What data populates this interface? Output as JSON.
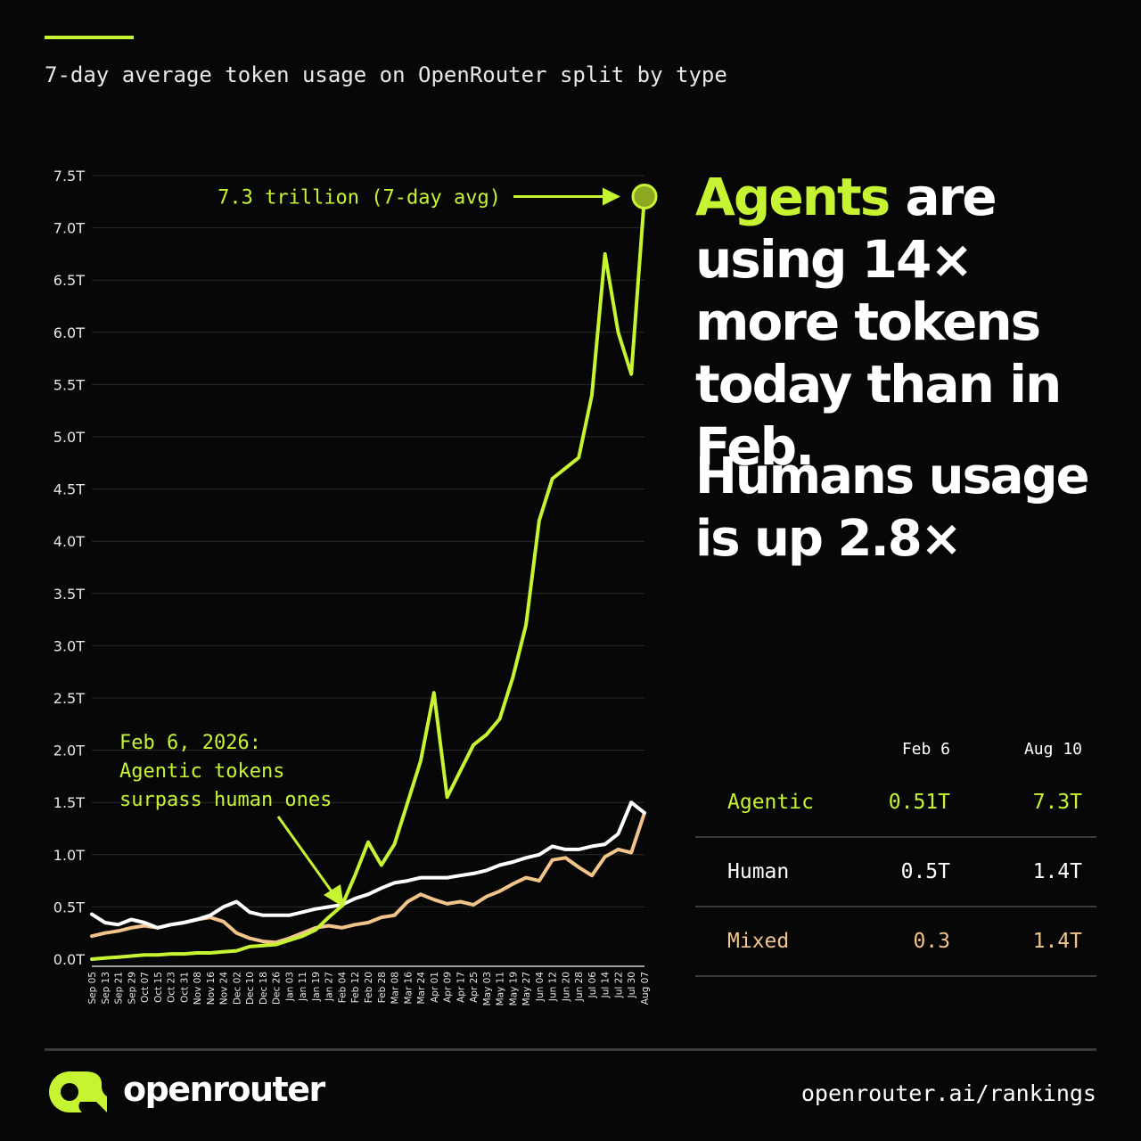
{
  "subtitle": "7-day average token usage on OpenRouter split by type",
  "headline": {
    "part1_accent": "Agents",
    "part1_rest": " are using 14× more tokens today than in Feb.",
    "part2": "Humans usage is up 2.8×"
  },
  "chart_data": {
    "type": "line",
    "title": "",
    "xlabel": "",
    "ylabel": "",
    "ylim": [
      0,
      7.5
    ],
    "y_ticks": [
      "0.0T",
      "0.5T",
      "1.0T",
      "1.5T",
      "2.0T",
      "2.5T",
      "3.0T",
      "3.5T",
      "4.0T",
      "4.5T",
      "5.0T",
      "5.5T",
      "6.0T",
      "6.5T",
      "7.0T",
      "7.5T"
    ],
    "y_tick_values": [
      0,
      0.5,
      1,
      1.5,
      2,
      2.5,
      3,
      3.5,
      4,
      4.5,
      5,
      5.5,
      6,
      6.5,
      7,
      7.5
    ],
    "x_labels": [
      "Sep 05",
      "Sep 13",
      "Sep 21",
      "Sep 29",
      "Oct 07",
      "Oct 15",
      "Oct 23",
      "Oct 31",
      "Nov 08",
      "Nov 16",
      "Nov 24",
      "Dec 02",
      "Dec 10",
      "Dec 18",
      "Dec 26",
      "Jan 03",
      "Jan 11",
      "Jan 19",
      "Jan 27",
      "Feb 04",
      "Feb 12",
      "Feb 20",
      "Feb 28",
      "Mar 08",
      "Mar 16",
      "Mar 24",
      "Apr 01",
      "Apr 09",
      "Apr 17",
      "Apr 25",
      "May 03",
      "May 11",
      "May 19",
      "May 27",
      "Jun 04",
      "Jun 12",
      "Jun 20",
      "Jun 28",
      "Jul 06",
      "Jul 14",
      "Jul 22",
      "Jul 30",
      "Aug 07"
    ],
    "grid": true,
    "series": [
      {
        "key": "mixed",
        "color": "#f2c48a",
        "values": [
          0.22,
          0.25,
          0.27,
          0.3,
          0.32,
          0.3,
          0.33,
          0.35,
          0.38,
          0.4,
          0.36,
          0.25,
          0.2,
          0.17,
          0.16,
          0.2,
          0.25,
          0.3,
          0.32,
          0.3,
          0.33,
          0.35,
          0.4,
          0.42,
          0.55,
          0.62,
          0.57,
          0.53,
          0.55,
          0.52,
          0.6,
          0.65,
          0.72,
          0.78,
          0.75,
          0.95,
          0.97,
          0.88,
          0.8,
          0.98,
          1.05,
          1.02,
          1.4
        ]
      },
      {
        "key": "human",
        "color": "#ffffff",
        "values": [
          0.43,
          0.35,
          0.33,
          0.38,
          0.35,
          0.3,
          0.33,
          0.35,
          0.38,
          0.42,
          0.5,
          0.55,
          0.45,
          0.42,
          0.42,
          0.42,
          0.45,
          0.48,
          0.5,
          0.52,
          0.58,
          0.62,
          0.68,
          0.73,
          0.75,
          0.78,
          0.78,
          0.78,
          0.8,
          0.82,
          0.85,
          0.9,
          0.93,
          0.97,
          1.0,
          1.08,
          1.05,
          1.05,
          1.08,
          1.1,
          1.2,
          1.5,
          1.4
        ]
      },
      {
        "key": "agentic",
        "color": "#c6f432",
        "values": [
          0.0,
          0.01,
          0.02,
          0.03,
          0.04,
          0.04,
          0.05,
          0.05,
          0.06,
          0.06,
          0.07,
          0.08,
          0.12,
          0.13,
          0.14,
          0.18,
          0.22,
          0.28,
          0.4,
          0.51,
          0.8,
          1.12,
          0.9,
          1.1,
          1.5,
          1.9,
          2.55,
          1.55,
          1.8,
          2.05,
          2.15,
          2.3,
          2.7,
          3.2,
          4.2,
          4.6,
          4.7,
          4.8,
          5.4,
          6.75,
          6.0,
          5.6,
          7.3
        ]
      }
    ],
    "annotations": [
      {
        "text": "7.3 trillion (7-day avg)",
        "x": "Aug 10",
        "y": 7.3
      },
      {
        "lines": [
          "Feb 6, 2026:",
          "Agentic tokens",
          "surpass human ones"
        ],
        "x": "Feb 06",
        "y": 0.51
      }
    ]
  },
  "table": {
    "headers": [
      "",
      "Feb 6",
      "Aug 10"
    ],
    "rows": [
      {
        "label": "Agentic",
        "feb": "0.51T",
        "aug": "7.3T",
        "color": "#c6f432"
      },
      {
        "label": "Human",
        "feb": "0.5T",
        "aug": "1.4T",
        "color": "#ffffff"
      },
      {
        "label": "Mixed",
        "feb": "0.3",
        "aug": "1.4T",
        "color": "#f2c48a"
      }
    ]
  },
  "footer": {
    "brand": "openrouter",
    "url": "openrouter.ai/rankings"
  },
  "colors": {
    "accent": "#c6f432",
    "mixed": "#f2c48a",
    "background": "#070708"
  },
  "icons": {
    "logo": "openrouter-logo-icon"
  }
}
